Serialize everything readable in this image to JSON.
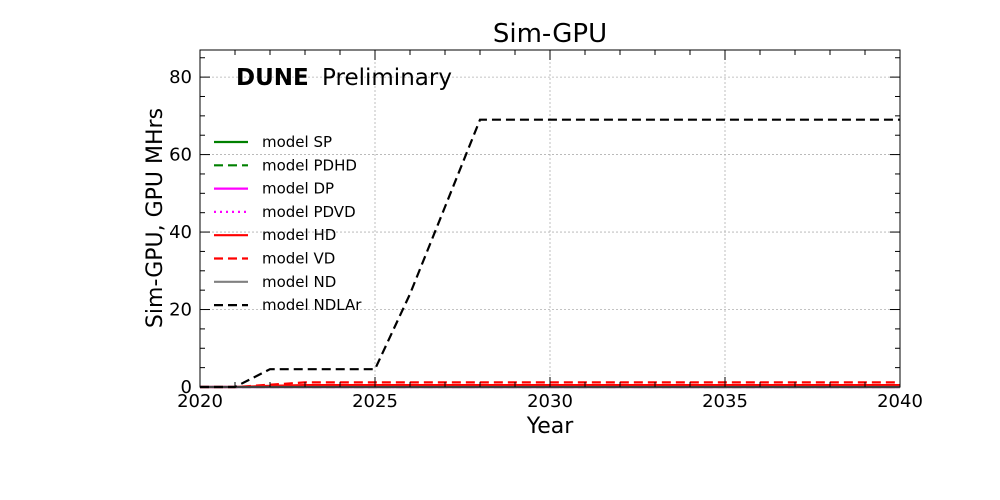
{
  "chart_data": {
    "type": "line",
    "title": "Sim-GPU",
    "xlabel": "Year",
    "ylabel": "Sim-GPU, GPU MHrs",
    "annotation": {
      "bold": "DUNE",
      "normal": "Preliminary"
    },
    "xlim": [
      2020,
      2040
    ],
    "ylim": [
      0,
      87
    ],
    "xticks": [
      2020,
      2025,
      2030,
      2035,
      2040
    ],
    "yticks": [
      0,
      20,
      40,
      60,
      80
    ],
    "grid": true,
    "legend_position": "center-left",
    "x": [
      2020,
      2021,
      2022,
      2023,
      2024,
      2025,
      2026,
      2027,
      2028,
      2029,
      2030,
      2031,
      2032,
      2033,
      2034,
      2035,
      2036,
      2037,
      2038,
      2039,
      2040
    ],
    "series": [
      {
        "name": "model SP",
        "color": "#008000",
        "style": "solid",
        "values": [
          0,
          0,
          0,
          0,
          0,
          0,
          0,
          0,
          0,
          0,
          0,
          0,
          0,
          0,
          0,
          0,
          0,
          0,
          0,
          0,
          0
        ]
      },
      {
        "name": "model PDHD",
        "color": "#008000",
        "style": "dashed",
        "values": [
          0,
          0,
          0,
          0,
          0,
          0,
          0,
          0,
          0,
          0,
          0,
          0,
          0,
          0,
          0,
          0,
          0,
          0,
          0,
          0,
          0
        ]
      },
      {
        "name": "model DP",
        "color": "#ff00ff",
        "style": "solid",
        "values": [
          0,
          0,
          0,
          0,
          0,
          0,
          0,
          0,
          0,
          0,
          0,
          0,
          0,
          0,
          0,
          0,
          0,
          0,
          0,
          0,
          0
        ]
      },
      {
        "name": "model PDVD",
        "color": "#ff00ff",
        "style": "dotted",
        "values": [
          0,
          0,
          0,
          0,
          0,
          0,
          0,
          0,
          0,
          0,
          0,
          0,
          0,
          0,
          0,
          0,
          0,
          0,
          0,
          0,
          0
        ]
      },
      {
        "name": "model HD",
        "color": "#ff0000",
        "style": "solid",
        "values": [
          0,
          0,
          0.3,
          0.5,
          0.5,
          0.5,
          0.5,
          0.5,
          0.5,
          0.5,
          0.5,
          0.5,
          0.5,
          0.5,
          0.5,
          0.5,
          0.5,
          0.5,
          0.5,
          0.5,
          0.5
        ]
      },
      {
        "name": "model VD",
        "color": "#ff0000",
        "style": "dashed",
        "values": [
          0,
          0,
          0.6,
          1.2,
          1.2,
          1.2,
          1.2,
          1.2,
          1.2,
          1.2,
          1.2,
          1.2,
          1.2,
          1.2,
          1.2,
          1.2,
          1.2,
          1.2,
          1.2,
          1.2,
          1.2
        ]
      },
      {
        "name": "model ND",
        "color": "#808080",
        "style": "solid",
        "values": [
          0,
          0,
          0,
          0,
          0,
          0,
          0,
          0,
          0,
          0,
          0,
          0,
          0,
          0,
          0,
          0,
          0,
          0,
          0,
          0,
          0
        ]
      },
      {
        "name": "model NDLAr",
        "color": "#000000",
        "style": "dashed",
        "values": [
          0,
          0,
          4.6,
          4.6,
          4.6,
          4.6,
          24,
          46.5,
          69,
          69,
          69,
          69,
          69,
          69,
          69,
          69,
          69,
          69,
          69,
          69,
          69
        ]
      }
    ]
  }
}
